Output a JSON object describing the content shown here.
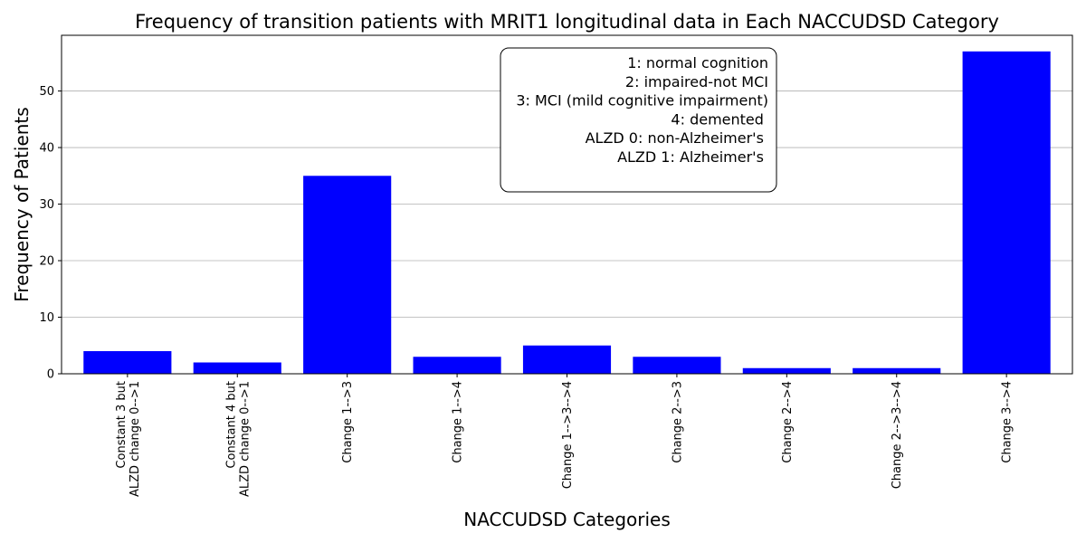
{
  "chart_data": {
    "type": "bar",
    "title": "Frequency of transition patients with MRIT1 longitudinal data in Each NACCUDSD Category",
    "xlabel": "NACCUDSD Categories",
    "ylabel": "Frequency of Patients",
    "categories": [
      [
        "Constant 3 but",
        "ALZD change 0-->1"
      ],
      [
        "Constant 4 but",
        "ALZD change 0-->1"
      ],
      [
        "Change 1-->3"
      ],
      [
        "Change 1-->4"
      ],
      [
        "Change 1-->3-->4"
      ],
      [
        "Change 2-->3"
      ],
      [
        "Change 2-->4"
      ],
      [
        "Change 2-->3-->4"
      ],
      [
        "Change 3-->4"
      ]
    ],
    "values": [
      4,
      2,
      35,
      3,
      5,
      3,
      1,
      1,
      57
    ],
    "ylim": [
      0,
      59.85
    ],
    "yticks": [
      0,
      10,
      20,
      30,
      40,
      50
    ],
    "bar_color": "#0000ff",
    "grid": "y-major",
    "annotation": {
      "placement": "top-center",
      "lines": [
        "1: normal cognition",
        "2: impaired-not MCI",
        "3: MCI (mild cognitive impairment)",
        "4: demented ",
        "ALZD 0: non-Alzheimer's ",
        "ALZD 1: Alzheimer's "
      ]
    }
  }
}
